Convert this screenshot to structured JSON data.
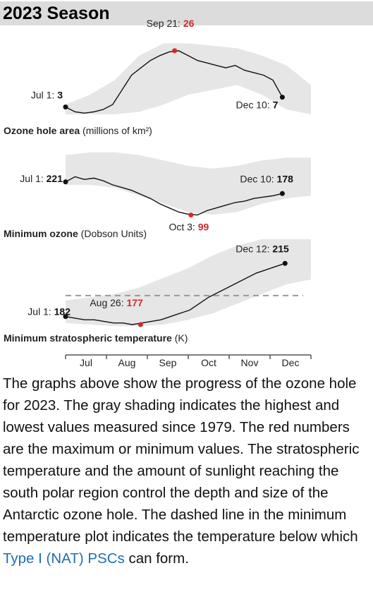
{
  "header": {
    "title": "2023 Season"
  },
  "chart_data": [
    {
      "type": "line",
      "title": "Ozone hole area",
      "unit": "(millions of km²)",
      "color": "#111111",
      "ylim": [
        0,
        30
      ],
      "values": [
        3,
        1,
        0.5,
        1,
        2,
        4,
        10,
        16,
        19,
        22,
        24,
        25.5,
        26,
        24,
        22,
        21,
        20,
        19,
        20,
        18,
        17,
        16,
        14,
        7
      ],
      "band": {
        "color": "#e6e6e6",
        "high": [
          4,
          8,
          14,
          24,
          29,
          29,
          28,
          27,
          24,
          20,
          12
        ],
        "low": [
          0,
          0,
          0,
          1,
          4,
          8,
          10,
          12,
          8,
          2,
          0
        ]
      },
      "annotations": [
        {
          "label": "Jul 1:",
          "value": 3,
          "color": "#111111"
        },
        {
          "label": "Sep 21:",
          "value": 26,
          "color": "#d62728"
        },
        {
          "label": "Dec 10:",
          "value": 7,
          "color": "#111111"
        }
      ]
    },
    {
      "type": "line",
      "title": "Minimum ozone",
      "unit": "(Dobson Units)",
      "color": "#111111",
      "ylim": [
        80,
        340
      ],
      "values": [
        221,
        240,
        230,
        235,
        225,
        210,
        200,
        190,
        175,
        160,
        140,
        125,
        110,
        102,
        99,
        115,
        125,
        135,
        145,
        150,
        160,
        165,
        170,
        178
      ],
      "band": {
        "color": "#e6e6e6",
        "high": [
          320,
          330,
          330,
          320,
          300,
          280,
          270,
          280,
          300,
          310,
          310
        ],
        "low": [
          210,
          210,
          200,
          170,
          140,
          110,
          100,
          110,
          140,
          160,
          170
        ]
      },
      "annotations": [
        {
          "label": "Jul 1:",
          "value": 221,
          "color": "#111111"
        },
        {
          "label": "Oct 3:",
          "value": 99,
          "color": "#d62728"
        },
        {
          "label": "Dec 10:",
          "value": 178,
          "color": "#111111"
        }
      ]
    },
    {
      "type": "line",
      "title": "Minimum stratospheric temperature",
      "unit": "(K)",
      "color": "#111111",
      "ylim": [
        170,
        230
      ],
      "threshold": 195,
      "values": [
        182,
        181,
        180,
        180,
        179,
        178,
        178,
        177,
        178,
        179,
        180,
        182,
        184,
        186,
        190,
        194,
        197,
        200,
        203,
        206,
        209,
        211,
        213,
        215
      ],
      "band": {
        "color": "#e6e6e6",
        "high": [
          192,
          194,
          196,
          200,
          206,
          212,
          220,
          226,
          230,
          230,
          230
        ],
        "low": [
          178,
          177,
          176,
          176,
          177,
          180,
          184,
          190,
          196,
          202,
          205
        ]
      },
      "annotations": [
        {
          "label": "Jul 1:",
          "value": 182,
          "color": "#111111"
        },
        {
          "label": "Aug 26:",
          "value": 177,
          "color": "#d62728"
        },
        {
          "label": "Dec 12:",
          "value": 215,
          "color": "#111111"
        }
      ]
    }
  ],
  "timeline": {
    "categories": [
      "Jul",
      "Aug",
      "Sep",
      "Oct",
      "Nov",
      "Dec"
    ]
  },
  "caption": {
    "text": "The graphs above show the progress of the ozone hole for 2023. The gray shading indicates the highest and lowest values measured since 1979. The red numbers are the maximum or minimum values. The stratospheric temperature and the amount of sunlight reaching the south polar region control the depth and size of the Antarctic ozone hole. The dashed line in the minimum temperature plot indicates the temperature below which ",
    "link": "Type I (NAT) PSCs",
    "text_after": " can form."
  }
}
